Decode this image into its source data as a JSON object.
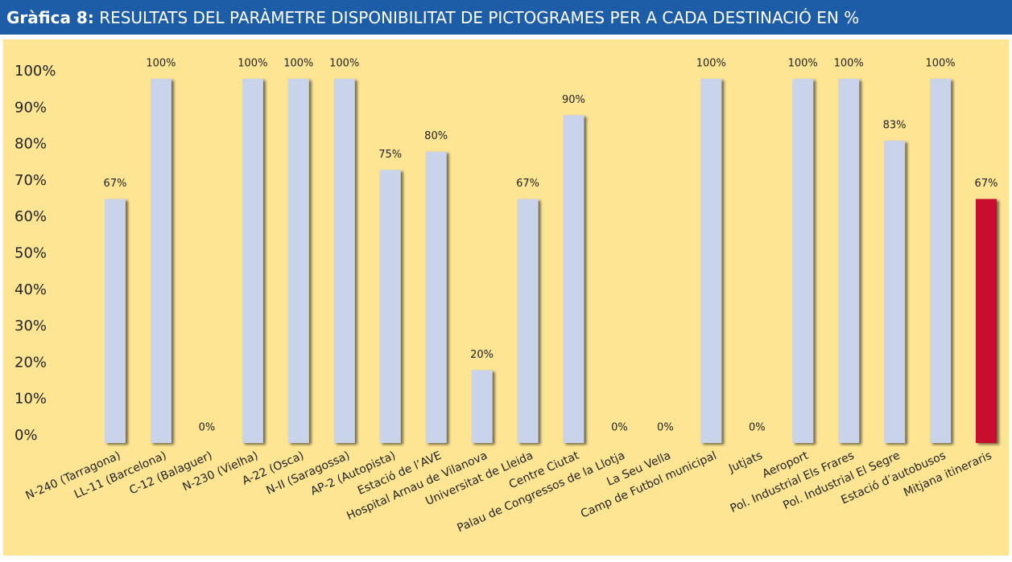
{
  "chart_data": {
    "type": "bar",
    "title_label": "Gràfica 8:",
    "title": "RESULTATS DEL PARÀMETRE DISPONIBILITAT DE PICTOGRAMES PER A CADA DESTINACIÓ EN %",
    "categories": [
      "N-240 (Tarragona)",
      "LL-11 (Barcelona)",
      "C-12 (Balaguer)",
      "N-230 (Vielha)",
      "A-22 (Osca)",
      "N-II (Saragossa)",
      "AP-2 (Autopista)",
      "Estació de l’AVE",
      "Hospital Arnau de Vilanova",
      "Universitat de Lleida",
      "Centre Ciutat",
      "Palau de Congressos de la Llotja",
      "La Seu Vella",
      "Camp de Futbol municipal",
      "Jutjats",
      "Aeroport",
      "Pol. Industrial Els Frares",
      "Pol. Industrial El Segre",
      "Estació d’autobusos",
      "Mitjana itineraris"
    ],
    "values": [
      67,
      100,
      0,
      100,
      100,
      100,
      75,
      80,
      20,
      67,
      90,
      0,
      0,
      100,
      0,
      100,
      100,
      83,
      100,
      67
    ],
    "value_labels": [
      "67%",
      "100%",
      "0%",
      "100%",
      "100%",
      "100%",
      "75%",
      "80%",
      "20%",
      "67%",
      "90%",
      "0%",
      "0%",
      "100%",
      "0%",
      "100%",
      "100%",
      "83%",
      "100%",
      "67%"
    ],
    "colors": [
      "#c9d3ea",
      "#c9d3ea",
      "#c9d3ea",
      "#c9d3ea",
      "#c9d3ea",
      "#c9d3ea",
      "#c9d3ea",
      "#c9d3ea",
      "#c9d3ea",
      "#c9d3ea",
      "#c9d3ea",
      "#c9d3ea",
      "#c9d3ea",
      "#c9d3ea",
      "#c9d3ea",
      "#c9d3ea",
      "#c9d3ea",
      "#c9d3ea",
      "#c9d3ea",
      "#c8102e"
    ],
    "ylim": [
      0,
      100
    ],
    "yticks": [
      {
        "value": 0,
        "label": "0%"
      },
      {
        "value": 10,
        "label": "10%"
      },
      {
        "value": 20,
        "label": "20%"
      },
      {
        "value": 30,
        "label": "30%"
      },
      {
        "value": 40,
        "label": "40%"
      },
      {
        "value": 50,
        "label": "50%"
      },
      {
        "value": 60,
        "label": "60%"
      },
      {
        "value": 70,
        "label": "70%"
      },
      {
        "value": 80,
        "label": "80%"
      },
      {
        "value": 90,
        "label": "90%"
      },
      {
        "value": 100,
        "label": "100%"
      }
    ],
    "grid": false
  }
}
